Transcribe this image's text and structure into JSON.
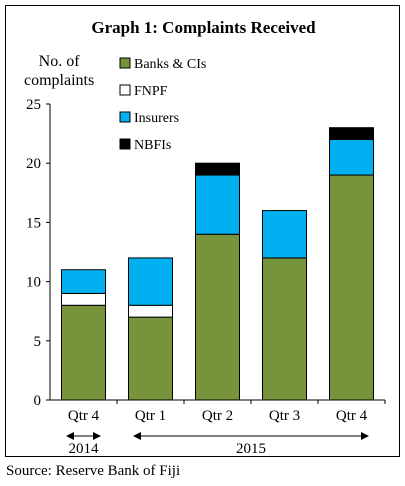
{
  "chart_data": {
    "type": "bar",
    "stacked": true,
    "title": "Graph 1: Complaints Received",
    "ylabel_lines": [
      "No. of",
      "complaints"
    ],
    "xlabel": "",
    "categories": [
      "Qtr 4",
      "Qtr 1",
      "Qtr 2",
      "Qtr 3",
      "Qtr 4"
    ],
    "year_groups": [
      {
        "label": "2014",
        "from": 0,
        "to": 0
      },
      {
        "label": "2015",
        "from": 1,
        "to": 4
      }
    ],
    "series": [
      {
        "name": "Banks & CIs",
        "color": "#77933c",
        "values": [
          8,
          7,
          14,
          12,
          19
        ]
      },
      {
        "name": "FNPF",
        "color": "#ffffff",
        "values": [
          1,
          1,
          0,
          0,
          0
        ]
      },
      {
        "name": "Insurers",
        "color": "#00b0f0",
        "values": [
          2,
          4,
          5,
          4,
          3
        ]
      },
      {
        "name": "NBFIs",
        "color": "#000000",
        "values": [
          0,
          0,
          1,
          0,
          1
        ]
      }
    ],
    "ylim": [
      0,
      25
    ],
    "yticks": [
      0,
      5,
      10,
      15,
      20,
      25
    ],
    "grid": false,
    "legend_position": "top-left inside plot"
  },
  "source": "Source: Reserve Bank of Fiji"
}
